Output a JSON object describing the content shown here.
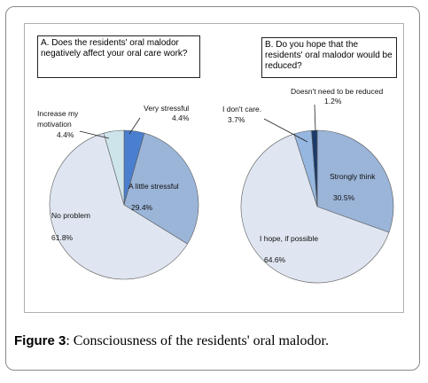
{
  "caption": {
    "label": "Figure 3",
    "text": ": Consciousness of the residents' oral malodor."
  },
  "colors": {
    "very_stressful": "#4a7ece",
    "little_stressful": "#9bb5d9",
    "no_problem": "#dfe6f1",
    "increase_motivation": "#cde4ea",
    "strongly_think": "#9bb5d9",
    "hope_if_possible": "#dfe6f1",
    "dont_care": "#96b7e0",
    "no_need": "#1c3a6a"
  },
  "chart_data": [
    {
      "type": "pie",
      "title": "A. Does the residents' oral malodor negatively affect your oral care work?",
      "slices": [
        {
          "label": "Very stressful",
          "value": 4.4,
          "value_label": "4.4%"
        },
        {
          "label": "A little stressful",
          "value": 29.4,
          "value_label": "29.4%"
        },
        {
          "label": "No problem",
          "value": 61.8,
          "value_label": "61.8%"
        },
        {
          "label": "Increase my motivation",
          "value": 4.4,
          "value_label": "4.4%"
        }
      ]
    },
    {
      "type": "pie",
      "title": "B. Do you hope that the residents' oral malodor would be reduced?",
      "slices": [
        {
          "label": "Strongly think",
          "value": 30.5,
          "value_label": "30.5%"
        },
        {
          "label": "I hope, if possible",
          "value": 64.6,
          "value_label": "64.6%"
        },
        {
          "label": "I don't care.",
          "value": 3.7,
          "value_label": "3.7%"
        },
        {
          "label": "Doesn't need to be reduced",
          "value": 1.2,
          "value_label": "1.2%"
        }
      ]
    }
  ]
}
